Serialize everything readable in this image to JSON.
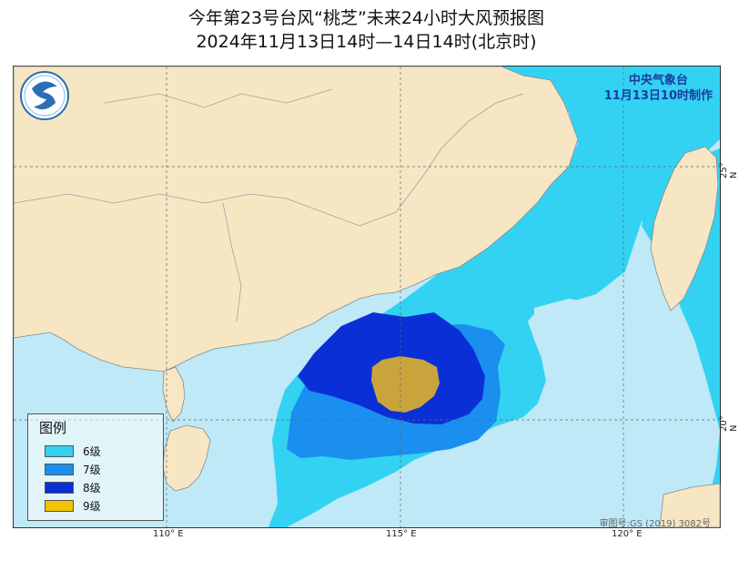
{
  "title": {
    "line1": "今年第23号台风“桃芝”未来24小时大风预报图",
    "line2": "2024年11月13日14时—14日14时(北京时)"
  },
  "issuer": {
    "name": "中央气象台",
    "time": "11月13日10时制作"
  },
  "legend": {
    "title": "图例",
    "items": [
      {
        "label": "6级",
        "color": "#33d2f2"
      },
      {
        "label": "7级",
        "color": "#1a8ff0"
      },
      {
        "label": "8级",
        "color": "#0a2fd6"
      },
      {
        "label": "9级",
        "color": "#c9a43c"
      }
    ]
  },
  "axes": {
    "lon": [
      "110° E",
      "115° E",
      "120° E"
    ],
    "lat": [
      "25° N",
      "20° N"
    ]
  },
  "review_number": "审图号:GS (2019) 3082号",
  "colors": {
    "sea": "#bfe9f7",
    "land": "#f6e6c4",
    "gale6": "#33d2f2",
    "gale7": "#1a8ff0",
    "gale8": "#0a2fd6",
    "gale9": "#c9a43c"
  },
  "logo": "cma-logo-icon"
}
